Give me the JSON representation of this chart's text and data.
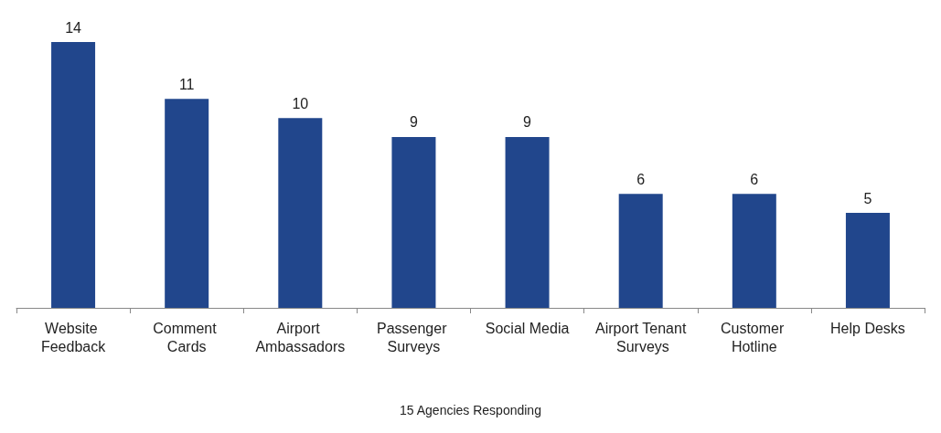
{
  "chart_data": {
    "type": "bar",
    "xlabel": "15 Agencies Responding",
    "categories": [
      "Website Feedback",
      "Comment Cards",
      "Airport Ambassadors",
      "Passenger Surveys",
      "Social Media",
      "Airport Tenant Surveys",
      "Customer Hotline",
      "Help Desks"
    ],
    "values": [
      14,
      11,
      10,
      9,
      9,
      6,
      6,
      5
    ],
    "color": "#21468c",
    "data_labels": true
  }
}
